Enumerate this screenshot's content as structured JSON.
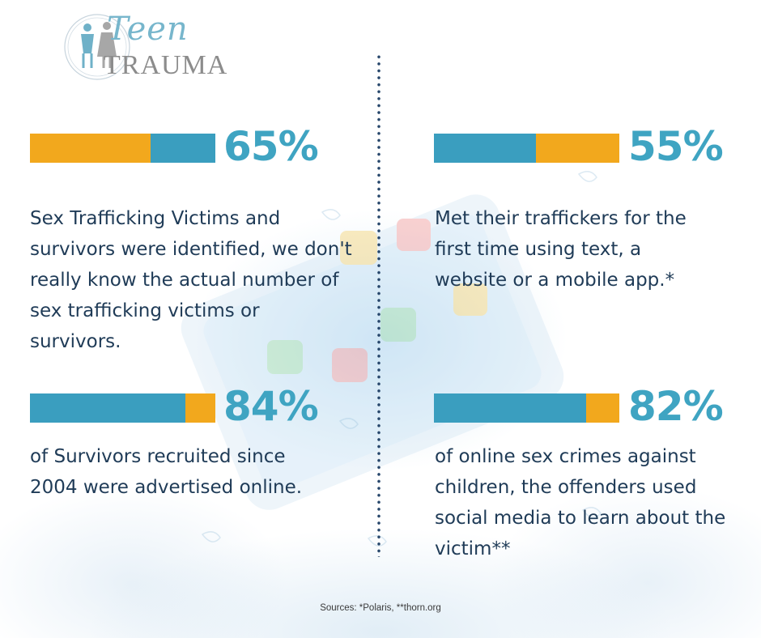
{
  "logo": {
    "line1": "Teen",
    "line2": "TRAUMA"
  },
  "stats": [
    {
      "percent_label": "65%",
      "value": 65,
      "bar": [
        {
          "fraction": 0.65,
          "color": "#f2a81d"
        },
        {
          "fraction": 0.35,
          "color": "#3a9ebf"
        }
      ],
      "description": "Sex Trafficking Victims and survivors were identified, we don't really know the actual number of sex trafficking victims or survivors."
    },
    {
      "percent_label": "55%",
      "value": 55,
      "bar": [
        {
          "fraction": 0.55,
          "color": "#3a9ebf"
        },
        {
          "fraction": 0.45,
          "color": "#f2a81d"
        }
      ],
      "description": "Met their traffickers for the first time using text, a website or a mobile app.*"
    },
    {
      "percent_label": "84%",
      "value": 84,
      "bar": [
        {
          "fraction": 0.84,
          "color": "#3a9ebf"
        },
        {
          "fraction": 0.16,
          "color": "#f2a81d"
        }
      ],
      "description": "of Survivors recruited since 2004 were advertised online."
    },
    {
      "percent_label": "82%",
      "value": 82,
      "bar": [
        {
          "fraction": 0.82,
          "color": "#3a9ebf"
        },
        {
          "fraction": 0.18,
          "color": "#f2a81d"
        }
      ],
      "description": "of online sex crimes against children, the offenders used social media to learn about the victim**"
    }
  ],
  "sources": "Sources: *Polaris,  **thorn.org",
  "colors": {
    "accent": "#3fa4c2",
    "orange": "#f2a81d",
    "blue": "#3a9ebf",
    "text": "#1f3b57"
  }
}
